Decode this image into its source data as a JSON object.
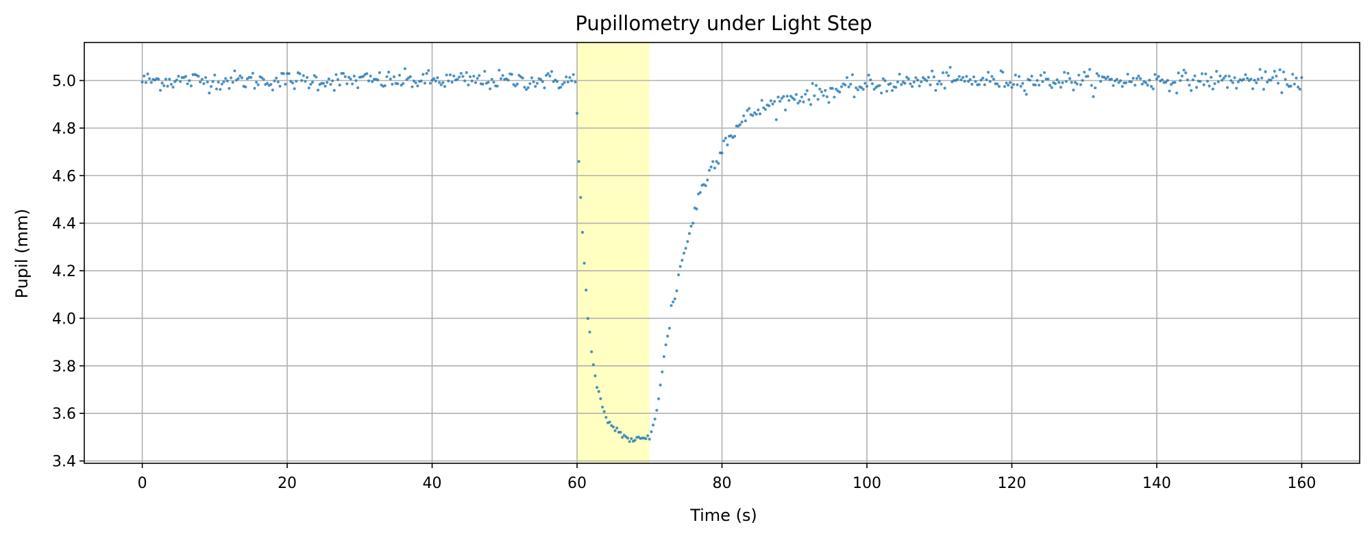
{
  "chart_data": {
    "type": "scatter",
    "title": "Pupillometry under Light Step",
    "xlabel": "Time (s)",
    "ylabel": "Pupil (mm)",
    "xlim": [
      -8,
      168
    ],
    "ylim": [
      3.39,
      5.16
    ],
    "x_ticks": [
      0,
      20,
      40,
      60,
      80,
      100,
      120,
      140,
      160
    ],
    "y_ticks": [
      3.4,
      3.6,
      3.8,
      4.0,
      4.2,
      4.4,
      4.6,
      4.8,
      5.0
    ],
    "grid": true,
    "point_color": "#1f77b4",
    "highlight_span": {
      "x_start": 60,
      "x_end": 70,
      "color": "#ffffb3"
    },
    "series": [
      {
        "sampling_interval_s": 0.25,
        "x": [
          0,
          160
        ],
        "points": [
          [
            0,
            5.0
          ],
          [
            10,
            5.0
          ],
          [
            20,
            5.0
          ],
          [
            30,
            5.0
          ],
          [
            40,
            5.0
          ],
          [
            50,
            5.0
          ],
          [
            59.9,
            5.0
          ],
          [
            60.0,
            4.86
          ],
          [
            60.25,
            4.66
          ],
          [
            60.5,
            4.5
          ],
          [
            60.75,
            4.36
          ],
          [
            61.0,
            4.25
          ],
          [
            61.25,
            4.11
          ],
          [
            61.5,
            4.01
          ],
          [
            61.75,
            3.94
          ],
          [
            62.0,
            3.85
          ],
          [
            62.5,
            3.75
          ],
          [
            63.0,
            3.68
          ],
          [
            63.5,
            3.62
          ],
          [
            64.0,
            3.58
          ],
          [
            65.0,
            3.54
          ],
          [
            66.0,
            3.52
          ],
          [
            67.0,
            3.49
          ],
          [
            68.0,
            3.49
          ],
          [
            69.0,
            3.49
          ],
          [
            70.0,
            3.5
          ],
          [
            70.5,
            3.55
          ],
          [
            71.0,
            3.62
          ],
          [
            71.5,
            3.72
          ],
          [
            72.0,
            3.83
          ],
          [
            72.5,
            3.93
          ],
          [
            73.0,
            4.03
          ],
          [
            73.5,
            4.1
          ],
          [
            74.0,
            4.18
          ],
          [
            75.0,
            4.3
          ],
          [
            76.0,
            4.42
          ],
          [
            77.0,
            4.53
          ],
          [
            78.0,
            4.6
          ],
          [
            79.0,
            4.66
          ],
          [
            80.0,
            4.73
          ],
          [
            82.0,
            4.8
          ],
          [
            84.0,
            4.86
          ],
          [
            86.0,
            4.89
          ],
          [
            88.0,
            4.91
          ],
          [
            90.0,
            4.93
          ],
          [
            94.0,
            4.95
          ],
          [
            98.0,
            4.97
          ],
          [
            104.0,
            4.99
          ],
          [
            110.0,
            5.0
          ],
          [
            130.0,
            5.0
          ],
          [
            160.0,
            5.0
          ]
        ],
        "noise_sd_mm": 0.02
      }
    ]
  }
}
